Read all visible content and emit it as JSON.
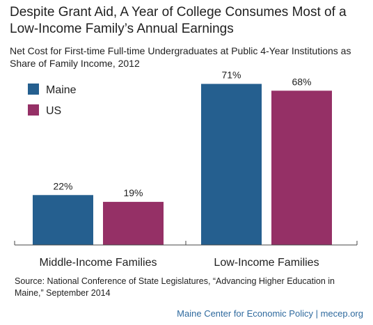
{
  "title": "Despite Grant Aid, A Year of College Consumes Most of a Low-Income Family’s Annual Earnings",
  "subtitle": "Net Cost for First-time Full-time Undergraduates at Public 4-Year Institutions as Share of Family Income, 2012",
  "source": "Source: National Conference of State Legislatures, “Advancing Higher Education in Maine,” September 2014",
  "credit": "Maine Center for Economic Policy | mecep.org",
  "chart_data": {
    "type": "bar",
    "categories": [
      "Middle-Income Families",
      "Low-Income Families"
    ],
    "series": [
      {
        "name": "Maine",
        "values": [
          22,
          71
        ],
        "labels": [
          "22%",
          "71%"
        ],
        "color": "#255f8f"
      },
      {
        "name": "US",
        "values": [
          19,
          68
        ],
        "labels": [
          "19%",
          "68%"
        ],
        "color": "#953066"
      }
    ],
    "ylim": [
      0,
      100
    ],
    "grid": false,
    "legend": "top-left",
    "xlabel": "",
    "ylabel": ""
  }
}
